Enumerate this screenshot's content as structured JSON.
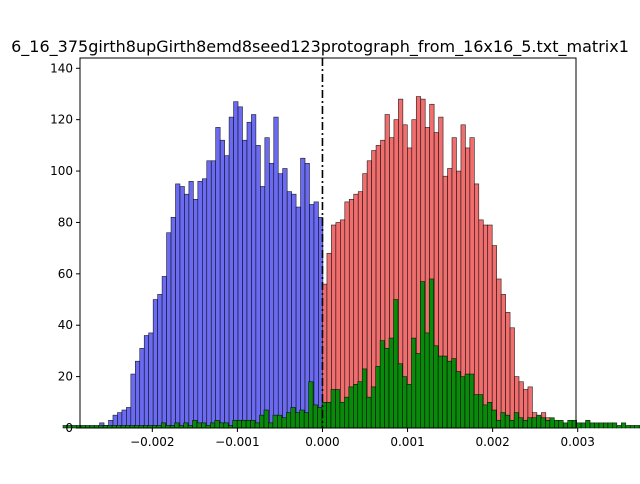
{
  "chart_data": {
    "type": "bar",
    "title": "6_16_375girth8upGirth8emd8seed123protograph_from_16x16_5.txt_matrix1",
    "xlabel": "",
    "ylabel": "",
    "xlim": [
      -0.00285,
      0.00298
    ],
    "ylim": [
      0,
      144
    ],
    "grid": false,
    "legend": "none",
    "x_ticks": [
      {
        "value": -0.002,
        "label": "−0.002"
      },
      {
        "value": -0.001,
        "label": "−0.001"
      },
      {
        "value": 0.0,
        "label": "0.000"
      },
      {
        "value": 0.001,
        "label": "0.001"
      },
      {
        "value": 0.002,
        "label": "0.002"
      },
      {
        "value": 0.003,
        "label": "0.003"
      }
    ],
    "y_ticks": [
      {
        "value": 0,
        "label": "0"
      },
      {
        "value": 20,
        "label": "20"
      },
      {
        "value": 40,
        "label": "40"
      },
      {
        "value": 60,
        "label": "60"
      },
      {
        "value": 80,
        "label": "80"
      },
      {
        "value": 100,
        "label": "100"
      },
      {
        "value": 120,
        "label": "120"
      },
      {
        "value": 140,
        "label": "140"
      }
    ],
    "vline": {
      "x": 0.0,
      "style": "dash-dot",
      "color": "#000000"
    },
    "series": [
      {
        "color": "#6b6bf2",
        "bin_width": 5.25e-05,
        "bin_start": -0.00262,
        "values": [
          2,
          1,
          3,
          5,
          6,
          7,
          8,
          21,
          26,
          31,
          36,
          37,
          50,
          52,
          59,
          76,
          82,
          95,
          94,
          91,
          96,
          89,
          96,
          97,
          104,
          104,
          117,
          112,
          106,
          121,
          127,
          125,
          112,
          119,
          122,
          110,
          94,
          113,
          103,
          121,
          99,
          101,
          92,
          91,
          86,
          105,
          103,
          87,
          88,
          82,
          55
        ]
      },
      {
        "color": "#f06e6e",
        "bin_width": 5.25e-05,
        "bin_start": 0.0,
        "values": [
          56,
          68,
          79,
          80,
          81,
          88,
          89,
          91,
          92,
          99,
          104,
          108,
          110,
          112,
          122,
          113,
          120,
          128,
          118,
          109,
          120,
          129,
          128,
          117,
          126,
          115,
          121,
          98,
          101,
          113,
          100,
          118,
          109,
          113,
          95,
          81,
          79,
          79,
          71,
          58,
          52,
          45,
          39,
          20,
          18,
          15,
          16,
          6,
          4,
          6,
          4
        ]
      },
      {
        "color": "#0a8a0a",
        "bin_width": 5.25e-05,
        "bin_start": -0.00305,
        "values": [
          1,
          1,
          1,
          1,
          1,
          1,
          1,
          1,
          1,
          1,
          1,
          1,
          1,
          1,
          1,
          1,
          1,
          1,
          1,
          1,
          1,
          1,
          2,
          1,
          1,
          2,
          1,
          2,
          1,
          3,
          2,
          2,
          1,
          2,
          3,
          2,
          2,
          1,
          3,
          3,
          3,
          3,
          3,
          2,
          5,
          7,
          2,
          5,
          5,
          4,
          6,
          8,
          6,
          7,
          6,
          18,
          9,
          8,
          10,
          10,
          15,
          15,
          10,
          12,
          16,
          17,
          18,
          23,
          12,
          16,
          24,
          34,
          31,
          35,
          50,
          25,
          20,
          17,
          35,
          29,
          57,
          37,
          58,
          32,
          28,
          28,
          26,
          27,
          22,
          20,
          21,
          21,
          13,
          13,
          9,
          10,
          7,
          3,
          6,
          5,
          3,
          6,
          4,
          3,
          4,
          4,
          5,
          4,
          3,
          4,
          3,
          3,
          2,
          3,
          3,
          2,
          2,
          3,
          2,
          2,
          2,
          2,
          2,
          2,
          1,
          2,
          1,
          1,
          1,
          1,
          1,
          1,
          1,
          1,
          1,
          1,
          1,
          1,
          1,
          1,
          1
        ]
      }
    ]
  }
}
